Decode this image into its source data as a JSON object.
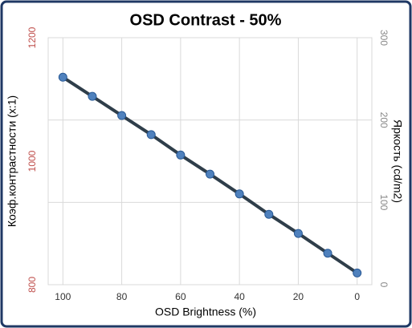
{
  "chart_data": {
    "type": "line",
    "title": "OSD Contrast - 50%",
    "x_label": "OSD Brightness (%)",
    "y_label": "Коэф.контрастности (x:1)",
    "y2_label": "Яркость (cd/m2)",
    "x": [
      100,
      90,
      80,
      70,
      60,
      50,
      40,
      30,
      20,
      10,
      0
    ],
    "values": [
      1136,
      1105,
      1074,
      1043,
      1010,
      979,
      947,
      914,
      883,
      851,
      819
    ],
    "color": "#2f3e4a",
    "marker_color": "#4f81bd",
    "xlim": [
      105,
      -5
    ],
    "xticks": [
      100,
      80,
      60,
      40,
      20,
      0
    ],
    "ylim": [
      800,
      1200
    ],
    "yticks": [
      800,
      1000,
      1200
    ],
    "y2lim": [
      0,
      300
    ],
    "y2ticks": [
      0,
      100,
      200,
      300
    ],
    "grid": true
  }
}
